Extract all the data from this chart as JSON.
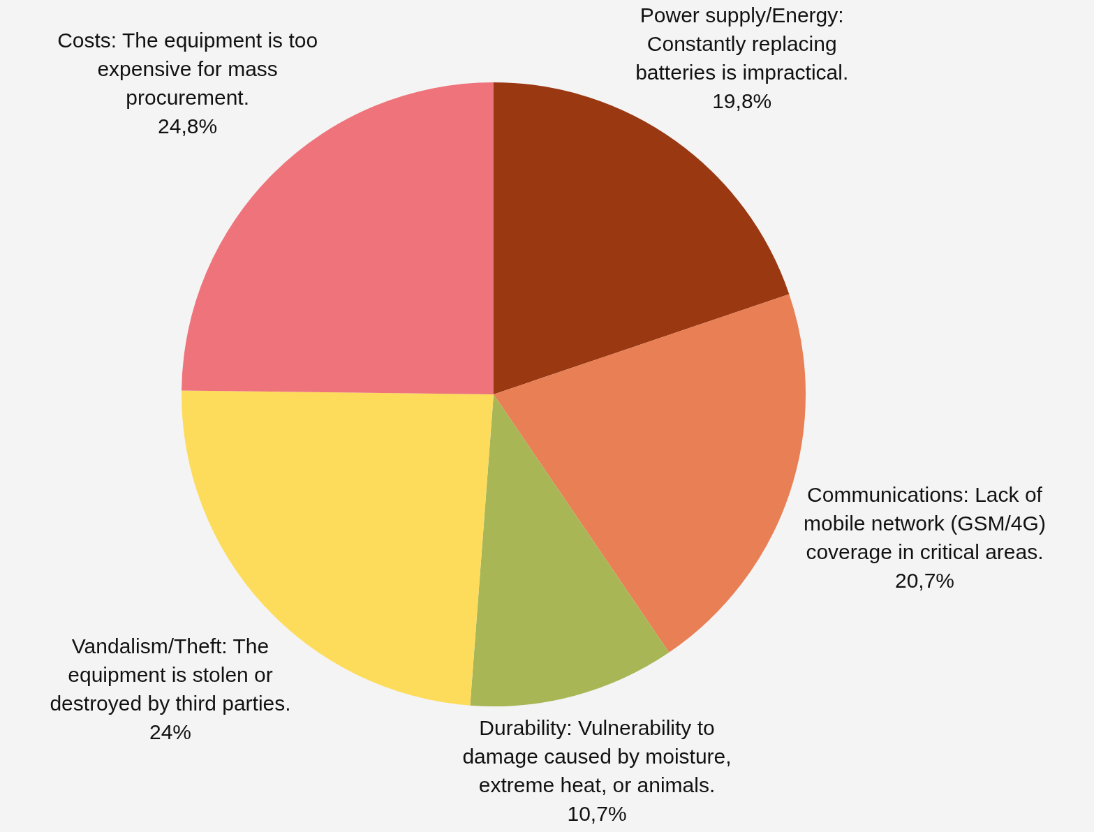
{
  "chart_data": {
    "type": "pie",
    "categories": [
      "Power supply/Energy: Constantly replacing batteries is impractical.",
      "Communications: Lack of mobile network (GSM/4G) coverage in critical areas.",
      "Durability: Vulnerability to damage caused by moisture, extreme heat, or animals.",
      "Vandalism/Theft: The equipment is stolen or destroyed by third parties.",
      "Costs: The equipment is too expensive for mass procurement."
    ],
    "values": [
      19.8,
      20.7,
      10.7,
      24,
      24.8
    ],
    "value_labels": [
      "19,8%",
      "20,7%",
      "10,7%",
      "24%",
      "24,8%"
    ],
    "colors": [
      "#9a3812",
      "#e87f55",
      "#a8b655",
      "#fddc5c",
      "#ee737b"
    ],
    "legend": false
  }
}
